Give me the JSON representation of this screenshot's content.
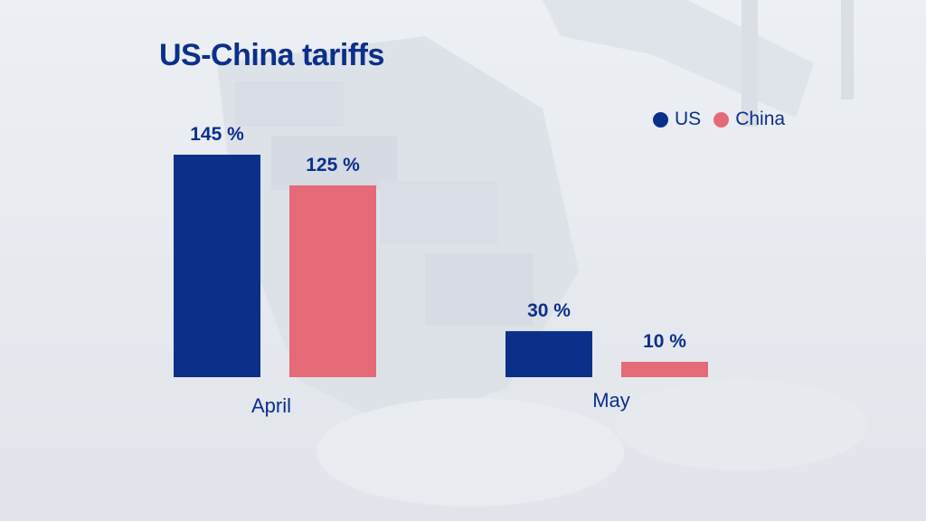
{
  "chart_data": {
    "type": "bar",
    "title": "US-China tariffs",
    "categories": [
      "April",
      "May"
    ],
    "series": [
      {
        "name": "US",
        "color": "#0c2f8a",
        "values": [
          145,
          30
        ],
        "labels": [
          "145 %",
          "30 %"
        ]
      },
      {
        "name": "China",
        "color": "#e56a78",
        "values": [
          125,
          10
        ],
        "labels": [
          "125 %",
          "10 %"
        ]
      }
    ],
    "ylim": [
      0,
      145
    ],
    "legend": "top-right",
    "grid": false
  },
  "colors": {
    "accent": "#0c2f8a",
    "china": "#e56a78",
    "background": "#e4e8ee"
  }
}
